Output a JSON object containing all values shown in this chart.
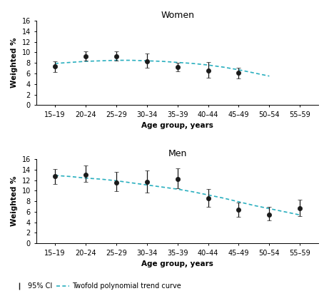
{
  "age_groups": [
    "15–19",
    "20–24",
    "25–29",
    "30–34",
    "35–39",
    "40–44",
    "45–49",
    "50–54",
    "55–59"
  ],
  "women": {
    "title": "Women",
    "x_indices": [
      0,
      1,
      2,
      3,
      4,
      5,
      6
    ],
    "y": [
      7.3,
      9.2,
      9.3,
      8.3,
      7.2,
      6.6,
      6.1
    ],
    "yerr_low": [
      1.0,
      0.7,
      0.8,
      1.2,
      0.8,
      1.4,
      1.0
    ],
    "yerr_high": [
      1.0,
      1.0,
      0.9,
      1.5,
      0.8,
      1.6,
      1.0
    ],
    "trend_x": [
      0,
      0.5,
      1,
      1.5,
      2,
      2.5,
      3,
      3.5,
      4,
      4.5,
      5,
      5.5,
      6,
      6.5,
      7
    ],
    "trend_y": [
      7.9,
      8.1,
      8.3,
      8.4,
      8.5,
      8.5,
      8.4,
      8.3,
      8.1,
      7.9,
      7.6,
      7.2,
      6.7,
      6.1,
      5.5
    ]
  },
  "men": {
    "title": "Men",
    "x_indices": [
      0,
      1,
      2,
      3,
      4,
      5,
      6,
      7,
      8
    ],
    "y": [
      12.7,
      13.1,
      11.6,
      11.7,
      12.2,
      8.6,
      6.4,
      5.5,
      6.6
    ],
    "yerr_low": [
      1.4,
      1.4,
      1.7,
      2.0,
      1.7,
      1.7,
      1.3,
      1.1,
      1.4
    ],
    "yerr_high": [
      1.4,
      1.7,
      2.0,
      2.1,
      2.0,
      1.7,
      1.4,
      1.4,
      1.7
    ],
    "trend_x": [
      0,
      0.5,
      1,
      1.5,
      2,
      2.5,
      3,
      3.5,
      4,
      4.5,
      5,
      5.5,
      6,
      6.5,
      7,
      7.5,
      8
    ],
    "trend_y": [
      12.9,
      12.7,
      12.4,
      12.2,
      11.9,
      11.5,
      11.1,
      10.7,
      10.3,
      9.8,
      9.2,
      8.6,
      7.9,
      7.2,
      6.6,
      6.0,
      5.4
    ]
  },
  "ylim": [
    0,
    16
  ],
  "yticks": [
    0,
    2,
    4,
    6,
    8,
    10,
    12,
    14,
    16
  ],
  "ylabel": "Weighted %",
  "xlabel": "Age group, years",
  "marker_color": "#1a1a1a",
  "trend_color": "#2aafbf",
  "errorbar_color": "#1a1a1a",
  "marker_size": 4.5,
  "capsize": 2.5,
  "legend_ci_label": "95% CI",
  "legend_trend_label": "Twofold polynomial trend curve"
}
